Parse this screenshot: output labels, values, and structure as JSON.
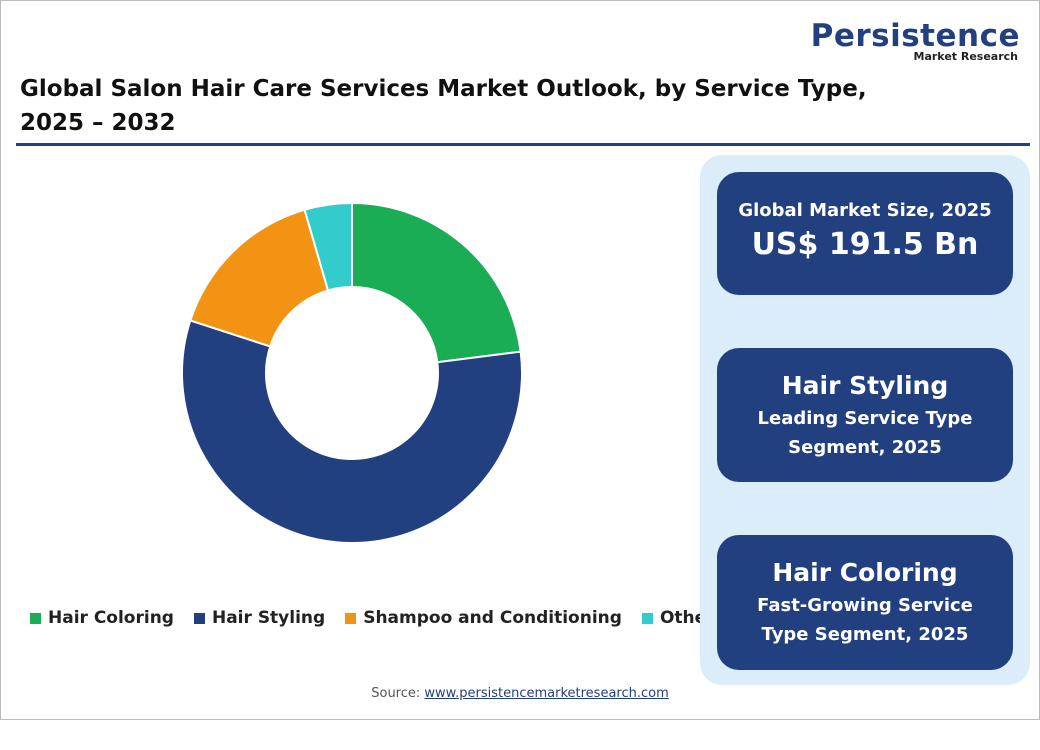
{
  "header": {
    "title": [
      "Global Salon Hair Care Services Market Outlook, by Service Type,",
      "2025 – 2032"
    ],
    "logo": {
      "name": "Persistence",
      "tagline": "Market Research"
    }
  },
  "chart_data": {
    "type": "donut",
    "categories": [
      "Hair Coloring",
      "Hair Styling",
      "Shampoo and Conditioning",
      "Others"
    ],
    "values": [
      23,
      57,
      15.5,
      4.5
    ],
    "colors": [
      "#1aad55",
      "#22407f",
      "#f39313",
      "#33cccc"
    ]
  },
  "cards": [
    {
      "label": "Global Market Size, 2025",
      "value": "US$ 191.5 Bn"
    },
    {
      "label": "Hair Styling",
      "lines": [
        "Leading Service Type",
        "Segment, 2025"
      ]
    },
    {
      "label": "Hair Coloring",
      "lines": [
        "Fast-Growing Service",
        "Type Segment, 2025"
      ]
    }
  ],
  "source": {
    "prefix": "Source:",
    "link": "www.persistencemarketresearch.com"
  }
}
